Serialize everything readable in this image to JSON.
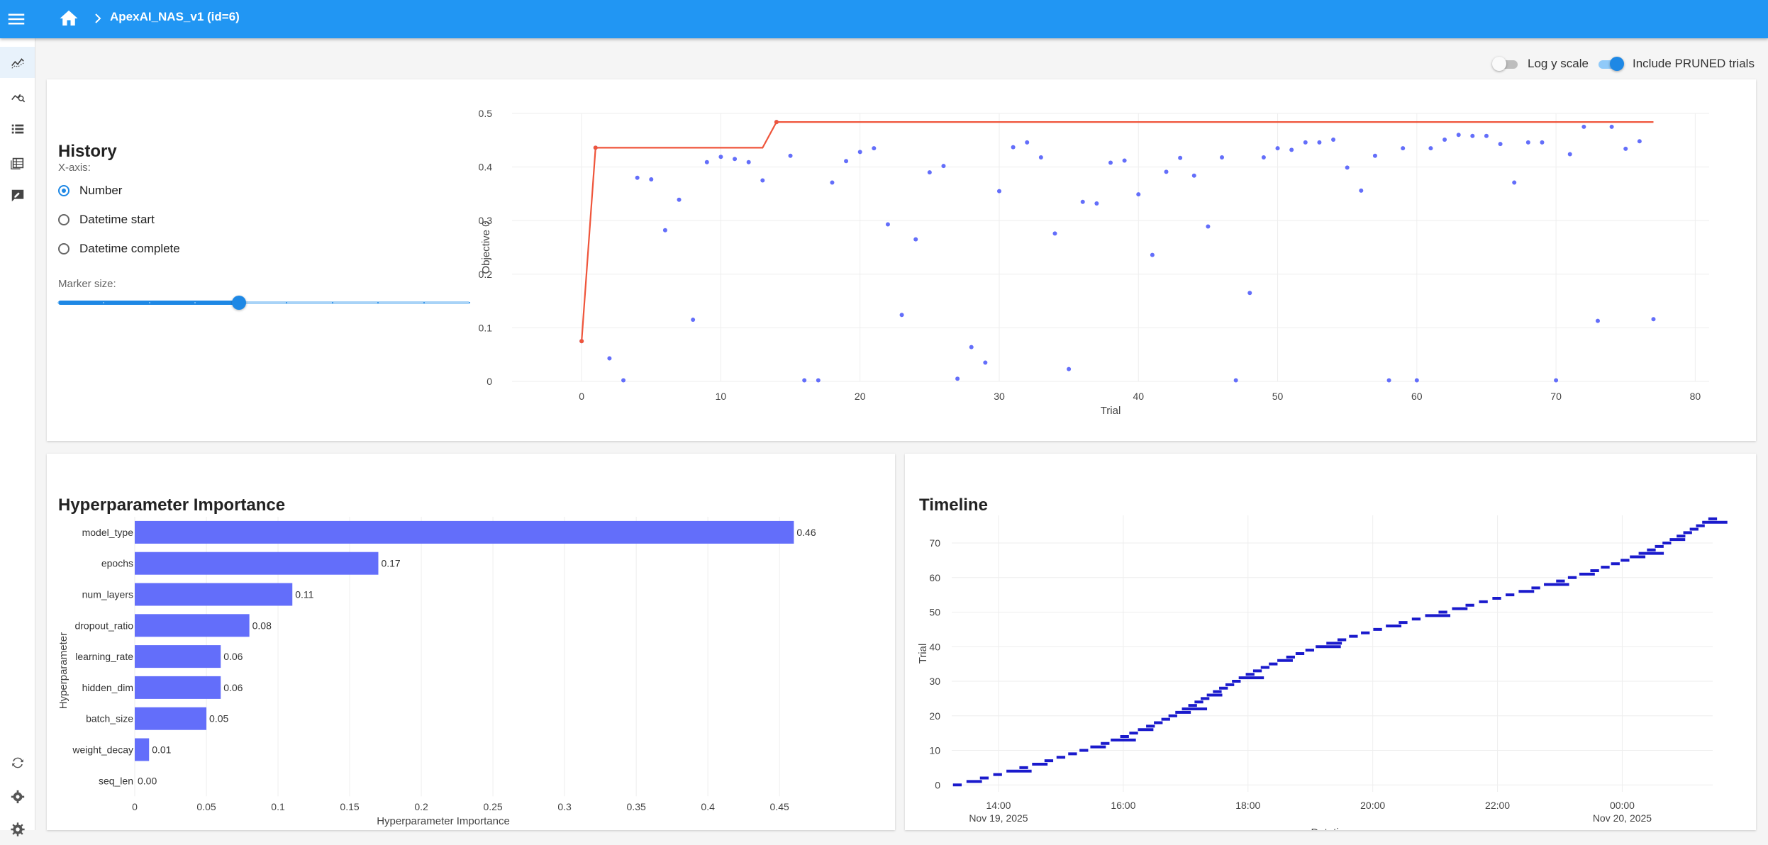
{
  "appbar": {
    "title": "ApexAI_NAS_v1 (id=6)",
    "icons": [
      "menu-icon",
      "home-icon",
      "chevron-right-icon"
    ],
    "color": "#2196f3"
  },
  "sidebar": {
    "items": [
      {
        "name": "history-nav",
        "icon": "trend-line-icon",
        "active": true
      },
      {
        "name": "analytics-nav",
        "icon": "chart-search-icon",
        "active": false
      },
      {
        "name": "trials-list-nav",
        "icon": "list-icon",
        "active": false
      },
      {
        "name": "trials-table-nav",
        "icon": "table-icon",
        "active": false
      },
      {
        "name": "note-nav",
        "icon": "note-icon",
        "active": false
      }
    ],
    "bottom_items": [
      {
        "name": "reload-nav",
        "icon": "sync-icon"
      },
      {
        "name": "settings-nav",
        "icon": "gear-icon"
      },
      {
        "name": "preferences-nav",
        "icon": "cog-icon"
      }
    ]
  },
  "controls": {
    "log_y_label": "Log y scale",
    "log_y_on": false,
    "pruned_label": "Include PRUNED trials",
    "pruned_on": true
  },
  "history": {
    "title": "History",
    "xaxis_label": "X-axis:",
    "options": [
      "Number",
      "Datetime start",
      "Datetime complete"
    ],
    "selected": "Number",
    "marker_label": "Marker size:",
    "marker_value_fraction": 0.44
  },
  "importance": {
    "title": "Hyperparameter Importance"
  },
  "timeline": {
    "title": "Timeline"
  },
  "colors": {
    "accent": "#2196f3",
    "point": "#636efa",
    "best_line": "#ef553b",
    "timeline_bar": "#1a1acc"
  },
  "chart_data": [
    {
      "type": "scatter",
      "name": "history",
      "xlabel": "Trial",
      "ylabel": "Objective 0",
      "xlim": [
        -5,
        81
      ],
      "ylim": [
        0,
        0.5
      ],
      "xticks": [
        0,
        10,
        20,
        30,
        40,
        50,
        60,
        70,
        80
      ],
      "yticks": [
        0,
        0.1,
        0.2,
        0.3,
        0.4,
        0.5
      ],
      "points": [
        [
          0,
          0.075
        ],
        [
          1,
          0.436
        ],
        [
          2,
          0.043
        ],
        [
          3,
          0.002
        ],
        [
          4,
          0.38
        ],
        [
          5,
          0.377
        ],
        [
          6,
          0.282
        ],
        [
          7,
          0.339
        ],
        [
          8,
          0.115
        ],
        [
          9,
          0.409
        ],
        [
          10,
          0.419
        ],
        [
          11,
          0.415
        ],
        [
          12,
          0.409
        ],
        [
          13,
          0.375
        ],
        [
          14,
          0.484
        ],
        [
          15,
          0.421
        ],
        [
          16,
          0.002
        ],
        [
          17,
          0.002
        ],
        [
          18,
          0.371
        ],
        [
          19,
          0.411
        ],
        [
          20,
          0.428
        ],
        [
          21,
          0.435
        ],
        [
          22,
          0.293
        ],
        [
          23,
          0.124
        ],
        [
          24,
          0.265
        ],
        [
          25,
          0.39
        ],
        [
          26,
          0.402
        ],
        [
          27,
          0.005
        ],
        [
          28,
          0.064
        ],
        [
          29,
          0.035
        ],
        [
          30,
          0.355
        ],
        [
          31,
          0.437
        ],
        [
          32,
          0.446
        ],
        [
          33,
          0.418
        ],
        [
          34,
          0.276
        ],
        [
          35,
          0.023
        ],
        [
          36,
          0.335
        ],
        [
          37,
          0.332
        ],
        [
          38,
          0.408
        ],
        [
          39,
          0.412
        ],
        [
          40,
          0.349
        ],
        [
          41,
          0.236
        ],
        [
          42,
          0.391
        ],
        [
          43,
          0.417
        ],
        [
          44,
          0.384
        ],
        [
          45,
          0.289
        ],
        [
          46,
          0.418
        ],
        [
          47,
          0.002
        ],
        [
          48,
          0.165
        ],
        [
          49,
          0.418
        ],
        [
          50,
          0.435
        ],
        [
          51,
          0.432
        ],
        [
          52,
          0.446
        ],
        [
          53,
          0.446
        ],
        [
          54,
          0.451
        ],
        [
          55,
          0.399
        ],
        [
          56,
          0.356
        ],
        [
          57,
          0.421
        ],
        [
          58,
          0.002
        ],
        [
          59,
          0.435
        ],
        [
          60,
          0.002
        ],
        [
          61,
          0.435
        ],
        [
          62,
          0.451
        ],
        [
          63,
          0.46
        ],
        [
          64,
          0.458
        ],
        [
          65,
          0.458
        ],
        [
          66,
          0.443
        ],
        [
          67,
          0.371
        ],
        [
          68,
          0.446
        ],
        [
          69,
          0.446
        ],
        [
          70,
          0.002
        ],
        [
          71,
          0.424
        ],
        [
          72,
          0.475
        ],
        [
          73,
          0.113
        ],
        [
          74,
          0.475
        ],
        [
          75,
          0.434
        ],
        [
          76,
          0.448
        ],
        [
          77,
          0.116
        ]
      ],
      "best_line": [
        [
          0,
          0.075
        ],
        [
          1,
          0.436
        ],
        [
          13,
          0.436
        ],
        [
          14,
          0.484
        ],
        [
          77,
          0.484
        ]
      ]
    },
    {
      "type": "bar",
      "name": "hyperparameter-importance",
      "xlabel": "Hyperparameter Importance",
      "ylabel": "Hyperparameter",
      "xlim": [
        0,
        0.49
      ],
      "xticks": [
        0,
        0.05,
        0.1,
        0.15,
        0.2,
        0.25,
        0.3,
        0.35,
        0.4,
        0.45
      ],
      "categories": [
        "model_type",
        "epochs",
        "num_layers",
        "dropout_ratio",
        "learning_rate",
        "hidden_dim",
        "batch_size",
        "weight_decay",
        "seq_len"
      ],
      "values": [
        0.46,
        0.17,
        0.11,
        0.08,
        0.06,
        0.06,
        0.05,
        0.01,
        0.0
      ],
      "value_labels": [
        "0.46",
        "0.17",
        "0.11",
        "0.08",
        "0.06",
        "0.06",
        "0.05",
        "0.01",
        "0.00"
      ]
    },
    {
      "type": "timeline",
      "name": "timeline",
      "xlabel": "Datetime",
      "ylabel": "Trial",
      "ylim": [
        -2,
        78
      ],
      "yticks": [
        0,
        10,
        20,
        30,
        40,
        50,
        60,
        70
      ],
      "xlim_hours": [
        13.25,
        25.45
      ],
      "xticks": [
        {
          "h": 14,
          "label": "14:00",
          "sub": "Nov 19, 2025"
        },
        {
          "h": 16,
          "label": "16:00",
          "sub": ""
        },
        {
          "h": 18,
          "label": "18:00",
          "sub": ""
        },
        {
          "h": 20,
          "label": "20:00",
          "sub": ""
        },
        {
          "h": 22,
          "label": "22:00",
          "sub": ""
        },
        {
          "h": 24,
          "label": "00:00",
          "sub": "Nov 20, 2025"
        }
      ],
      "start_hour": 13.27,
      "end_hour": 25.38,
      "trials": 78
    }
  ]
}
